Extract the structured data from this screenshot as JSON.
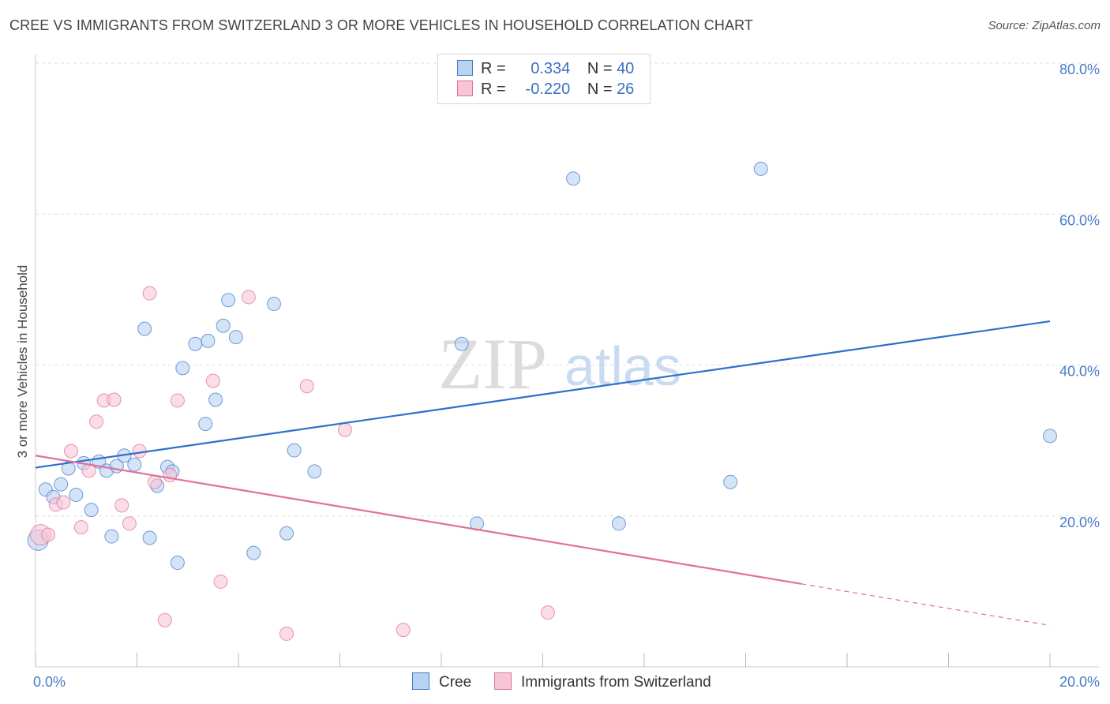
{
  "title": "CREE VS IMMIGRANTS FROM SWITZERLAND 3 OR MORE VEHICLES IN HOUSEHOLD CORRELATION CHART",
  "source": "Source: ZipAtlas.com",
  "watermark": {
    "zip": "ZIP",
    "atlas": "atlas"
  },
  "colors": {
    "blue": "#4a7cc9",
    "blue_fill": "#b8d2f2",
    "pink": "#e2729c",
    "pink_fill": "#f7c6d6",
    "blue_line": "#2e6fcc",
    "pink_line": "#e0709a"
  },
  "legend": {
    "rows": [
      {
        "r_label": "R =",
        "r_value": "0.334",
        "n_label": "N =",
        "n_value": "40"
      },
      {
        "r_label": "R =",
        "r_value": "-0.220",
        "n_label": "N =",
        "n_value": "26"
      }
    ]
  },
  "bottom_legend": {
    "cree": "Cree",
    "swiss": "Immigrants from Switzerland"
  },
  "chart_data": {
    "type": "scatter",
    "ylabel": "3 or more Vehicles in Household",
    "xlim": [
      0,
      20
    ],
    "ylim": [
      0,
      80
    ],
    "x_ticks": [
      {
        "value": 0,
        "label": "0.0%"
      },
      {
        "value": 20,
        "label": "20.0%"
      }
    ],
    "y_ticks": [
      {
        "value": 20,
        "label": "20.0%"
      },
      {
        "value": 40,
        "label": "40.0%"
      },
      {
        "value": 60,
        "label": "60.0%"
      },
      {
        "value": 80,
        "label": "80.0%"
      }
    ],
    "series": [
      {
        "name": "Cree",
        "points": [
          [
            0.05,
            16.8
          ],
          [
            0.2,
            23.5
          ],
          [
            0.35,
            22.5
          ],
          [
            0.5,
            24.2
          ],
          [
            0.65,
            26.3
          ],
          [
            0.8,
            22.8
          ],
          [
            0.95,
            27.0
          ],
          [
            1.1,
            20.8
          ],
          [
            1.25,
            27.2
          ],
          [
            1.4,
            26.0
          ],
          [
            1.5,
            17.3
          ],
          [
            1.6,
            26.6
          ],
          [
            1.75,
            28.0
          ],
          [
            1.95,
            26.8
          ],
          [
            2.15,
            44.8
          ],
          [
            2.25,
            17.1
          ],
          [
            2.4,
            24.0
          ],
          [
            2.6,
            26.5
          ],
          [
            2.7,
            25.9
          ],
          [
            2.8,
            13.8
          ],
          [
            2.9,
            39.6
          ],
          [
            3.15,
            42.8
          ],
          [
            3.35,
            32.2
          ],
          [
            3.4,
            43.2
          ],
          [
            3.55,
            35.4
          ],
          [
            3.7,
            45.2
          ],
          [
            3.8,
            48.6
          ],
          [
            3.95,
            43.7
          ],
          [
            4.3,
            15.1
          ],
          [
            4.7,
            48.1
          ],
          [
            4.95,
            17.7
          ],
          [
            5.1,
            28.7
          ],
          [
            5.5,
            25.9
          ],
          [
            8.4,
            42.8
          ],
          [
            8.7,
            19.0
          ],
          [
            10.6,
            64.7
          ],
          [
            11.5,
            19.0
          ],
          [
            13.7,
            24.5
          ],
          [
            14.3,
            66.0
          ],
          [
            20.0,
            30.6
          ]
        ],
        "trend": {
          "x": [
            0,
            20
          ],
          "y": [
            26.4,
            45.8
          ]
        }
      },
      {
        "name": "Immigrants from Switzerland",
        "points": [
          [
            0.1,
            17.5
          ],
          [
            0.25,
            17.5
          ],
          [
            0.4,
            21.5
          ],
          [
            0.55,
            21.8
          ],
          [
            0.7,
            28.6
          ],
          [
            0.9,
            18.5
          ],
          [
            1.05,
            26.0
          ],
          [
            1.2,
            32.5
          ],
          [
            1.35,
            35.3
          ],
          [
            1.55,
            35.4
          ],
          [
            1.7,
            21.4
          ],
          [
            1.85,
            19.0
          ],
          [
            2.05,
            28.6
          ],
          [
            2.25,
            49.5
          ],
          [
            2.35,
            24.5
          ],
          [
            2.55,
            6.2
          ],
          [
            2.65,
            25.4
          ],
          [
            2.8,
            35.3
          ],
          [
            3.5,
            37.9
          ],
          [
            3.65,
            11.3
          ],
          [
            4.2,
            49.0
          ],
          [
            4.95,
            4.4
          ],
          [
            5.35,
            37.2
          ],
          [
            6.1,
            31.4
          ],
          [
            7.25,
            4.9
          ],
          [
            10.1,
            7.2
          ]
        ],
        "trend": {
          "x": [
            0,
            15.1
          ],
          "y": [
            28.0,
            11.0
          ]
        },
        "trend_dashed": {
          "x": [
            15.1,
            20
          ],
          "y": [
            11.0,
            5.5
          ]
        }
      }
    ]
  }
}
